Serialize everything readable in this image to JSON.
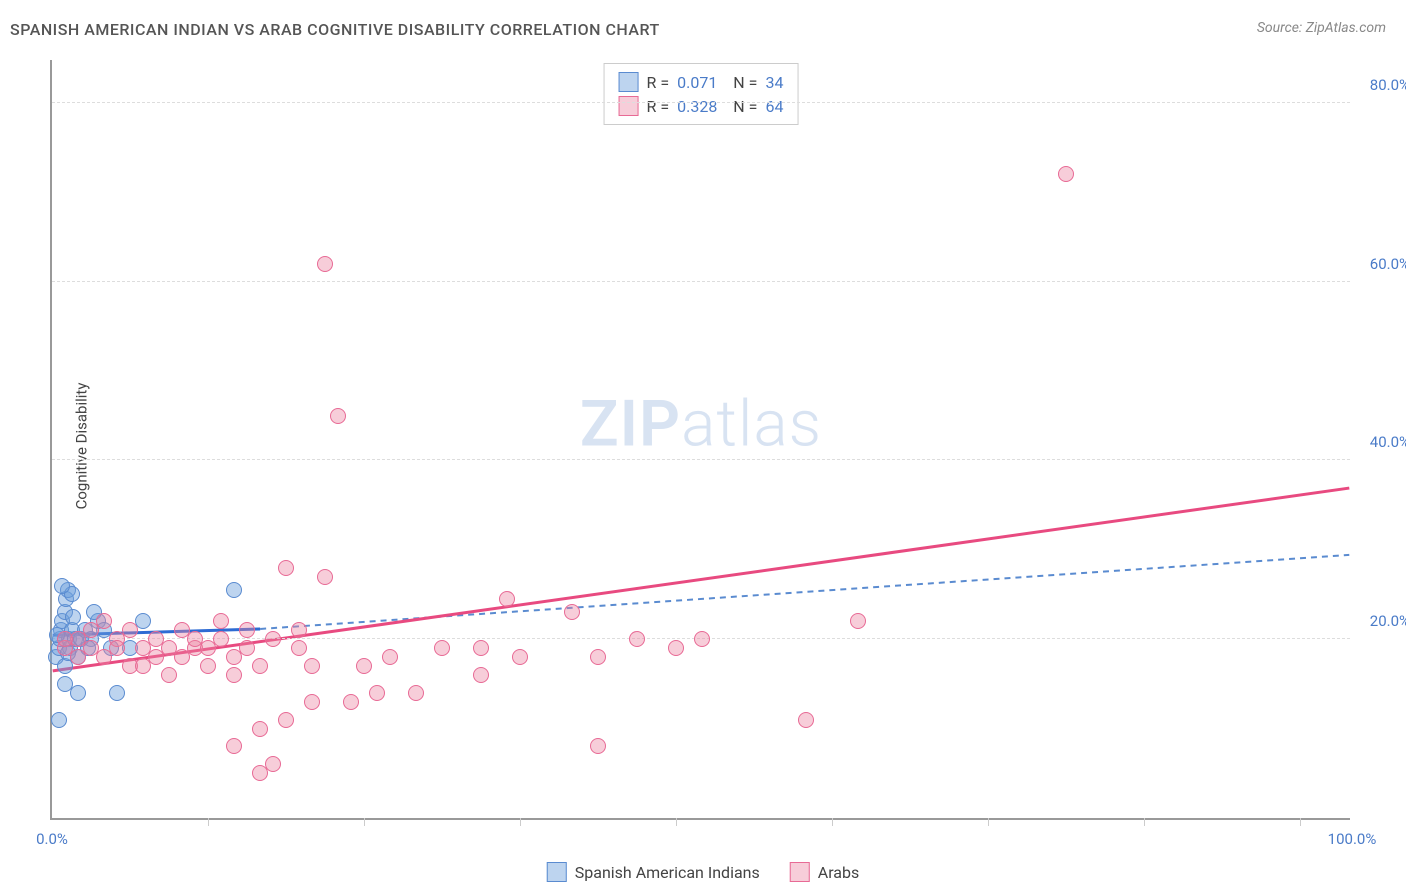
{
  "title": "SPANISH AMERICAN INDIAN VS ARAB COGNITIVE DISABILITY CORRELATION CHART",
  "source": "Source: ZipAtlas.com",
  "watermark_bold": "ZIP",
  "watermark_light": "atlas",
  "y_axis_label": "Cognitive Disability",
  "chart": {
    "type": "scatter",
    "xlim": [
      0,
      100
    ],
    "ylim": [
      0,
      85
    ],
    "y_ticks": [
      {
        "v": 20,
        "label": "20.0%"
      },
      {
        "v": 40,
        "label": "40.0%"
      },
      {
        "v": 60,
        "label": "60.0%"
      },
      {
        "v": 80,
        "label": "80.0%"
      }
    ],
    "x_vticks": [
      12,
      24,
      36,
      48,
      60,
      72,
      84,
      96
    ],
    "x_labels": [
      {
        "v": 0,
        "label": "0.0%"
      },
      {
        "v": 100,
        "label": "100.0%"
      }
    ],
    "background_color": "#ffffff",
    "grid_color": "#dddddd",
    "series": [
      {
        "name": "Spanish American Indians",
        "fill": "rgba(108,160,220,0.45)",
        "stroke": "#5a8bd0",
        "marker_r": 8,
        "R": "0.071",
        "N": "34",
        "trend": {
          "x1": 0,
          "y1": 20.5,
          "x2": 16,
          "y2": 21.2,
          "color": "#2e6bd3",
          "width": 3,
          "dash": "none"
        },
        "trend_ext": {
          "x1": 16,
          "y1": 21.2,
          "x2": 100,
          "y2": 29.5,
          "color": "#5a8bd0",
          "width": 2,
          "dash": "6,5"
        },
        "points": [
          {
            "x": 0.3,
            "y": 18
          },
          {
            "x": 0.5,
            "y": 19
          },
          {
            "x": 0.6,
            "y": 20
          },
          {
            "x": 0.7,
            "y": 21
          },
          {
            "x": 0.8,
            "y": 22
          },
          {
            "x": 1.0,
            "y": 23
          },
          {
            "x": 1.1,
            "y": 24.5
          },
          {
            "x": 1.2,
            "y": 25.5
          },
          {
            "x": 1.3,
            "y": 20
          },
          {
            "x": 1.4,
            "y": 19
          },
          {
            "x": 1.5,
            "y": 21
          },
          {
            "x": 1.6,
            "y": 22.5
          },
          {
            "x": 1.8,
            "y": 20
          },
          {
            "x": 2.0,
            "y": 18
          },
          {
            "x": 2.2,
            "y": 20
          },
          {
            "x": 2.5,
            "y": 21
          },
          {
            "x": 3.0,
            "y": 20
          },
          {
            "x": 3.5,
            "y": 22
          },
          {
            "x": 4.0,
            "y": 21
          },
          {
            "x": 1.0,
            "y": 15
          },
          {
            "x": 2.0,
            "y": 14
          },
          {
            "x": 0.5,
            "y": 11
          },
          {
            "x": 5.0,
            "y": 14
          },
          {
            "x": 1.5,
            "y": 25
          },
          {
            "x": 0.8,
            "y": 26
          },
          {
            "x": 14.0,
            "y": 25.5
          },
          {
            "x": 6.0,
            "y": 19
          },
          {
            "x": 7.0,
            "y": 22
          },
          {
            "x": 4.5,
            "y": 19
          },
          {
            "x": 3.2,
            "y": 23
          },
          {
            "x": 2.8,
            "y": 19
          },
          {
            "x": 1.0,
            "y": 17
          },
          {
            "x": 1.2,
            "y": 18.5
          },
          {
            "x": 0.4,
            "y": 20.5
          }
        ]
      },
      {
        "name": "Arabs",
        "fill": "rgba(235,130,160,0.40)",
        "stroke": "#e86a95",
        "marker_r": 8,
        "R": "0.328",
        "N": "64",
        "trend": {
          "x1": 0,
          "y1": 16.5,
          "x2": 100,
          "y2": 37.0,
          "color": "#e84a80",
          "width": 3,
          "dash": "none"
        },
        "points": [
          {
            "x": 2,
            "y": 18
          },
          {
            "x": 3,
            "y": 19
          },
          {
            "x": 4,
            "y": 18
          },
          {
            "x": 5,
            "y": 20
          },
          {
            "x": 5,
            "y": 19
          },
          {
            "x": 6,
            "y": 17
          },
          {
            "x": 6,
            "y": 21
          },
          {
            "x": 7,
            "y": 19
          },
          {
            "x": 7,
            "y": 17
          },
          {
            "x": 8,
            "y": 20
          },
          {
            "x": 8,
            "y": 18
          },
          {
            "x": 9,
            "y": 19
          },
          {
            "x": 9,
            "y": 16
          },
          {
            "x": 10,
            "y": 21
          },
          {
            "x": 10,
            "y": 18
          },
          {
            "x": 11,
            "y": 19
          },
          {
            "x": 11,
            "y": 20
          },
          {
            "x": 12,
            "y": 19
          },
          {
            "x": 12,
            "y": 17
          },
          {
            "x": 13,
            "y": 20
          },
          {
            "x": 14,
            "y": 18
          },
          {
            "x": 14,
            "y": 16
          },
          {
            "x": 15,
            "y": 21
          },
          {
            "x": 15,
            "y": 19
          },
          {
            "x": 16,
            "y": 17
          },
          {
            "x": 14,
            "y": 8
          },
          {
            "x": 16,
            "y": 5
          },
          {
            "x": 16,
            "y": 10
          },
          {
            "x": 17,
            "y": 6
          },
          {
            "x": 18,
            "y": 11
          },
          {
            "x": 18,
            "y": 28
          },
          {
            "x": 19,
            "y": 19
          },
          {
            "x": 20,
            "y": 13
          },
          {
            "x": 20,
            "y": 17
          },
          {
            "x": 21,
            "y": 27
          },
          {
            "x": 21,
            "y": 62
          },
          {
            "x": 22,
            "y": 45
          },
          {
            "x": 23,
            "y": 13
          },
          {
            "x": 24,
            "y": 17
          },
          {
            "x": 25,
            "y": 14
          },
          {
            "x": 26,
            "y": 18
          },
          {
            "x": 28,
            "y": 14
          },
          {
            "x": 33,
            "y": 16
          },
          {
            "x": 33,
            "y": 19
          },
          {
            "x": 35,
            "y": 24.5
          },
          {
            "x": 36,
            "y": 18
          },
          {
            "x": 40,
            "y": 23
          },
          {
            "x": 42,
            "y": 18
          },
          {
            "x": 42,
            "y": 8
          },
          {
            "x": 45,
            "y": 20
          },
          {
            "x": 48,
            "y": 19
          },
          {
            "x": 50,
            "y": 20
          },
          {
            "x": 58,
            "y": 11
          },
          {
            "x": 62,
            "y": 22
          },
          {
            "x": 78,
            "y": 72
          },
          {
            "x": 3,
            "y": 21
          },
          {
            "x": 4,
            "y": 22
          },
          {
            "x": 2,
            "y": 20
          },
          {
            "x": 1,
            "y": 19
          },
          {
            "x": 1,
            "y": 20
          },
          {
            "x": 13,
            "y": 22
          },
          {
            "x": 17,
            "y": 20
          },
          {
            "x": 19,
            "y": 21
          },
          {
            "x": 30,
            "y": 19
          }
        ]
      }
    ]
  },
  "legend_bottom": [
    {
      "label": "Spanish American Indians",
      "fill": "rgba(108,160,220,0.45)",
      "stroke": "#5a8bd0"
    },
    {
      "label": "Arabs",
      "fill": "rgba(235,130,160,0.40)",
      "stroke": "#e86a95"
    }
  ]
}
